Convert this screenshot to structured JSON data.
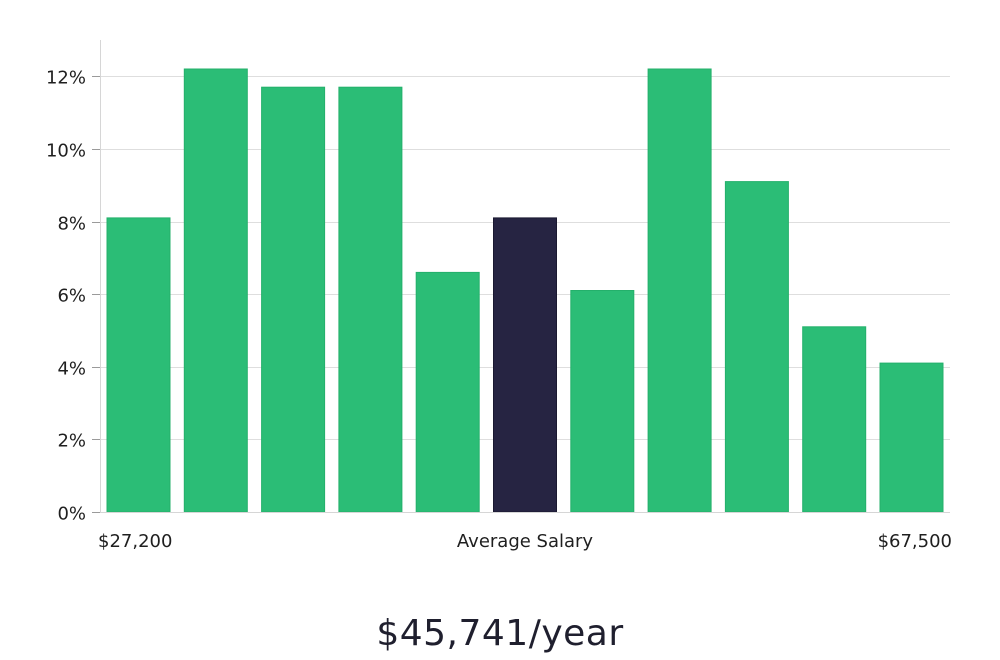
{
  "chart_data": {
    "type": "bar",
    "title": "",
    "xlabel": "Average Salary",
    "ylabel": "",
    "x_start_label": "$27,200",
    "x_end_label": "$67,500",
    "ylim": [
      0,
      13
    ],
    "yticks": [
      0,
      2,
      4,
      6,
      8,
      10,
      12
    ],
    "ytick_suffix": "%",
    "values": [
      8.1,
      12.2,
      11.7,
      11.7,
      6.6,
      8.1,
      6.1,
      12.2,
      9.1,
      5.1,
      4.1
    ],
    "highlight_index": 5,
    "colors": {
      "bar": "#2bbd76",
      "highlight": "#262442",
      "grid": "#dedede"
    }
  },
  "salary": {
    "display": "$45,741/year"
  }
}
